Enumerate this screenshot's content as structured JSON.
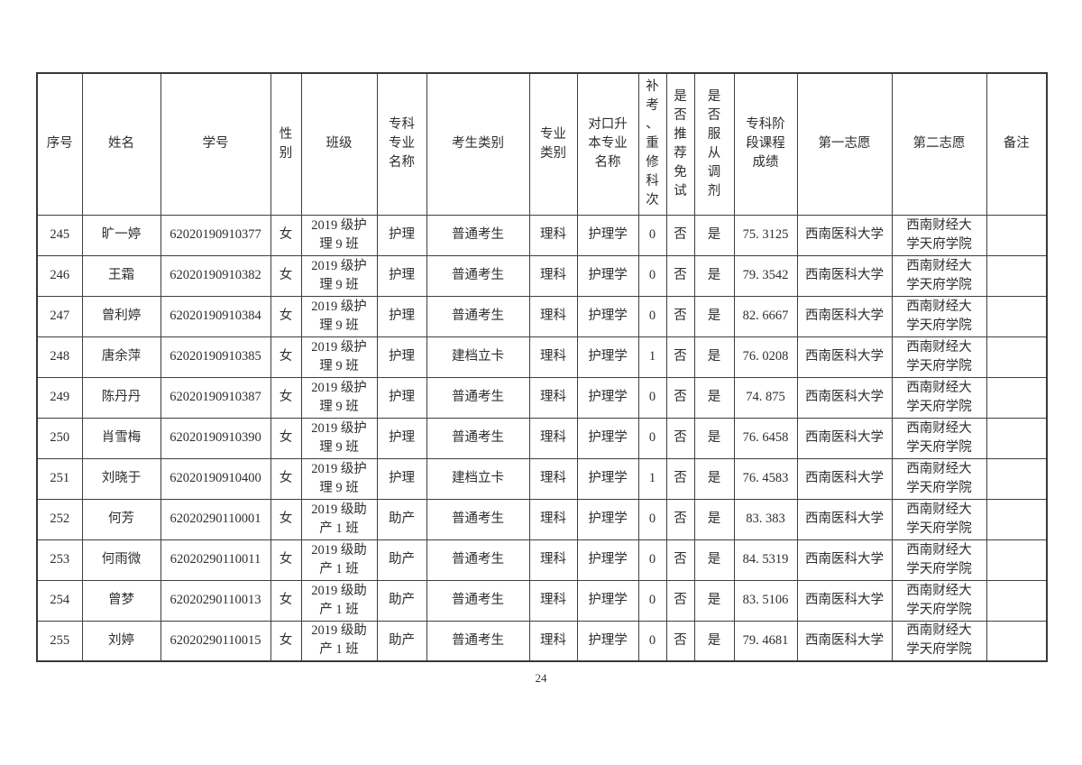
{
  "document": {
    "page_number": "24"
  },
  "table": {
    "headers": [
      "序号",
      "姓名",
      "学号",
      "性\n别",
      "班级",
      "专科\n专业\n名称",
      "考生类别",
      "专业\n类别",
      "对口升\n本专业\n名称",
      "补\n考\n、\n重\n修\n科\n次",
      "是\n否\n推\n荐\n免\n试",
      "是\n否\n服\n从\n调\n剂",
      "专科阶\n段课程\n成绩",
      "第一志愿",
      "第二志愿",
      "备注"
    ],
    "column_keys": [
      "index",
      "name",
      "student-id",
      "gender",
      "class",
      "major-name",
      "candidate-type",
      "subject-category",
      "target-major",
      "retake-count",
      "exempt-recommend",
      "obey-adjustment",
      "score",
      "first-choice",
      "second-choice",
      "remarks"
    ],
    "rows": [
      [
        "245",
        "旷一婷",
        "62020190910377",
        "女",
        "2019 级护\n理 9 班",
        "护理",
        "普通考生",
        "理科",
        "护理学",
        "0",
        "否",
        "是",
        "75. 3125",
        "西南医科大学",
        "西南财经大\n学天府学院",
        ""
      ],
      [
        "246",
        "王霜",
        "62020190910382",
        "女",
        "2019 级护\n理 9 班",
        "护理",
        "普通考生",
        "理科",
        "护理学",
        "0",
        "否",
        "是",
        "79. 3542",
        "西南医科大学",
        "西南财经大\n学天府学院",
        ""
      ],
      [
        "247",
        "曾利婷",
        "62020190910384",
        "女",
        "2019 级护\n理 9 班",
        "护理",
        "普通考生",
        "理科",
        "护理学",
        "0",
        "否",
        "是",
        "82. 6667",
        "西南医科大学",
        "西南财经大\n学天府学院",
        ""
      ],
      [
        "248",
        "唐余萍",
        "62020190910385",
        "女",
        "2019 级护\n理 9 班",
        "护理",
        "建档立卡",
        "理科",
        "护理学",
        "1",
        "否",
        "是",
        "76. 0208",
        "西南医科大学",
        "西南财经大\n学天府学院",
        ""
      ],
      [
        "249",
        "陈丹丹",
        "62020190910387",
        "女",
        "2019 级护\n理 9 班",
        "护理",
        "普通考生",
        "理科",
        "护理学",
        "0",
        "否",
        "是",
        "74. 875",
        "西南医科大学",
        "西南财经大\n学天府学院",
        ""
      ],
      [
        "250",
        "肖雪梅",
        "62020190910390",
        "女",
        "2019 级护\n理 9 班",
        "护理",
        "普通考生",
        "理科",
        "护理学",
        "0",
        "否",
        "是",
        "76. 6458",
        "西南医科大学",
        "西南财经大\n学天府学院",
        ""
      ],
      [
        "251",
        "刘晓于",
        "62020190910400",
        "女",
        "2019 级护\n理 9 班",
        "护理",
        "建档立卡",
        "理科",
        "护理学",
        "1",
        "否",
        "是",
        "76. 4583",
        "西南医科大学",
        "西南财经大\n学天府学院",
        ""
      ],
      [
        "252",
        "何芳",
        "62020290110001",
        "女",
        "2019 级助\n产 1 班",
        "助产",
        "普通考生",
        "理科",
        "护理学",
        "0",
        "否",
        "是",
        "83. 383",
        "西南医科大学",
        "西南财经大\n学天府学院",
        ""
      ],
      [
        "253",
        "何雨微",
        "62020290110011",
        "女",
        "2019 级助\n产 1 班",
        "助产",
        "普通考生",
        "理科",
        "护理学",
        "0",
        "否",
        "是",
        "84. 5319",
        "西南医科大学",
        "西南财经大\n学天府学院",
        ""
      ],
      [
        "254",
        "曾梦",
        "62020290110013",
        "女",
        "2019 级助\n产 1 班",
        "助产",
        "普通考生",
        "理科",
        "护理学",
        "0",
        "否",
        "是",
        "83. 5106",
        "西南医科大学",
        "西南财经大\n学天府学院",
        ""
      ],
      [
        "255",
        "刘婷",
        "62020290110015",
        "女",
        "2019 级助\n产 1 班",
        "助产",
        "普通考生",
        "理科",
        "护理学",
        "0",
        "否",
        "是",
        "79. 4681",
        "西南医科大学",
        "西南财经大\n学天府学院",
        ""
      ]
    ]
  }
}
